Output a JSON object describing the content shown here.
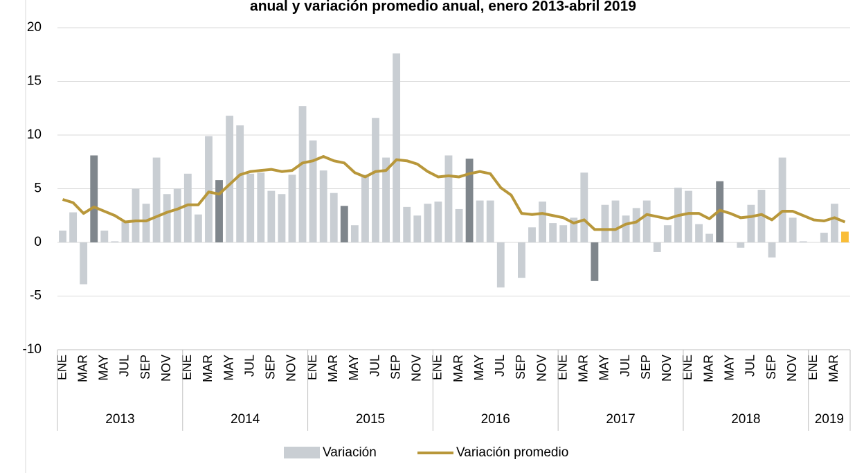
{
  "chart_data": {
    "type": "bar_line",
    "title": "anual y variación promedio anual, enero 2013-abril 2019",
    "categories": [
      "ENE",
      null,
      "MAR",
      null,
      "MAY",
      null,
      "JUL",
      null,
      "SEP",
      null,
      "NOV",
      null,
      "ENE",
      null,
      "MAR",
      null,
      "MAY",
      null,
      "JUL",
      null,
      "SEP",
      null,
      "NOV",
      null,
      "ENE",
      null,
      "MAR",
      null,
      "MAY",
      null,
      "JUL",
      null,
      "SEP",
      null,
      "NOV",
      null,
      "ENE",
      null,
      "MAR",
      null,
      "MAY",
      null,
      "JUL",
      null,
      "SEP",
      null,
      "NOV",
      null,
      "ENE",
      null,
      "MAR",
      null,
      "MAY",
      null,
      "JUL",
      null,
      "SEP",
      null,
      "NOV",
      null,
      "ENE",
      null,
      "MAR",
      null,
      "MAY",
      null,
      "JUL",
      null,
      "SEP",
      null,
      "NOV",
      null,
      "ENE",
      null,
      "MAR",
      null
    ],
    "groups": [
      {
        "label": "2013",
        "span": 12
      },
      {
        "label": "2014",
        "span": 12
      },
      {
        "label": "2015",
        "span": 12
      },
      {
        "label": "2016",
        "span": 12
      },
      {
        "label": "2017",
        "span": 12
      },
      {
        "label": "2018",
        "span": 12
      },
      {
        "label": "2019",
        "span": 4
      }
    ],
    "series": [
      {
        "name": "Variación",
        "type": "bar",
        "color": "#c9ced3",
        "colors": [
          "#c9ced3",
          "#c9ced3",
          "#c9ced3",
          "#7f868c",
          "#c9ced3",
          "#c9ced3",
          "#c9ced3",
          "#c9ced3",
          "#c9ced3",
          "#c9ced3",
          "#c9ced3",
          "#c9ced3",
          "#c9ced3",
          "#c9ced3",
          "#c9ced3",
          "#7f868c",
          "#c9ced3",
          "#c9ced3",
          "#c9ced3",
          "#c9ced3",
          "#c9ced3",
          "#c9ced3",
          "#c9ced3",
          "#c9ced3",
          "#c9ced3",
          "#c9ced3",
          "#c9ced3",
          "#7f868c",
          "#c9ced3",
          "#c9ced3",
          "#c9ced3",
          "#c9ced3",
          "#c9ced3",
          "#c9ced3",
          "#c9ced3",
          "#c9ced3",
          "#c9ced3",
          "#c9ced3",
          "#c9ced3",
          "#7f868c",
          "#c9ced3",
          "#c9ced3",
          "#c9ced3",
          "#c9ced3",
          "#c9ced3",
          "#c9ced3",
          "#c9ced3",
          "#c9ced3",
          "#c9ced3",
          "#c9ced3",
          "#c9ced3",
          "#7f868c",
          "#c9ced3",
          "#c9ced3",
          "#c9ced3",
          "#c9ced3",
          "#c9ced3",
          "#c9ced3",
          "#c9ced3",
          "#c9ced3",
          "#c9ced3",
          "#c9ced3",
          "#c9ced3",
          "#7f868c",
          "#c9ced3",
          "#c9ced3",
          "#c9ced3",
          "#c9ced3",
          "#c9ced3",
          "#c9ced3",
          "#c9ced3",
          "#c9ced3",
          "#c9ced3",
          "#c9ced3",
          "#c9ced3",
          "#f9bd38"
        ],
        "values": [
          1.1,
          2.8,
          -3.9,
          8.1,
          1.1,
          0.1,
          1.9,
          5.0,
          3.6,
          7.9,
          4.5,
          5.0,
          6.4,
          2.6,
          9.9,
          5.8,
          11.8,
          10.9,
          6.4,
          6.5,
          4.8,
          4.5,
          6.3,
          12.7,
          9.5,
          6.7,
          4.6,
          3.4,
          1.6,
          6.3,
          11.6,
          7.9,
          17.6,
          3.3,
          2.5,
          3.6,
          3.8,
          8.1,
          3.1,
          7.8,
          3.9,
          3.9,
          -4.2,
          0.0,
          -3.3,
          1.4,
          3.8,
          1.8,
          1.6,
          2.3,
          6.5,
          -3.6,
          3.5,
          3.9,
          2.5,
          3.2,
          3.9,
          -0.9,
          1.6,
          5.1,
          4.8,
          1.7,
          0.8,
          5.7,
          0.0,
          -0.5,
          3.5,
          4.9,
          -1.4,
          7.9,
          2.3,
          0.1,
          0.0,
          0.9,
          3.6,
          1.0
        ]
      },
      {
        "name": "Variación promedio",
        "type": "line",
        "color": "#b8973a",
        "values": [
          4.0,
          3.7,
          2.7,
          3.3,
          2.9,
          2.5,
          1.9,
          2.0,
          2.0,
          2.4,
          2.8,
          3.1,
          3.5,
          3.5,
          4.7,
          4.5,
          5.4,
          6.3,
          6.6,
          6.7,
          6.8,
          6.6,
          6.7,
          7.4,
          7.6,
          8.0,
          7.6,
          7.4,
          6.5,
          6.1,
          6.6,
          6.7,
          7.7,
          7.6,
          7.3,
          6.6,
          6.1,
          6.2,
          6.1,
          6.4,
          6.6,
          6.4,
          5.1,
          4.4,
          2.7,
          2.6,
          2.7,
          2.5,
          2.3,
          1.8,
          2.1,
          1.2,
          1.2,
          1.2,
          1.7,
          1.9,
          2.6,
          2.4,
          2.2,
          2.5,
          2.7,
          2.7,
          2.2,
          3.0,
          2.7,
          2.3,
          2.4,
          2.6,
          2.1,
          2.9,
          2.9,
          2.5,
          2.1,
          2.0,
          2.3,
          1.9
        ]
      }
    ],
    "ylim": [
      -10,
      20
    ],
    "yticks": [
      -10,
      {
        "value": -5,
        "label": "-5"
      },
      0,
      5,
      10,
      15,
      20
    ],
    "grid": true,
    "legend": "bottom"
  }
}
